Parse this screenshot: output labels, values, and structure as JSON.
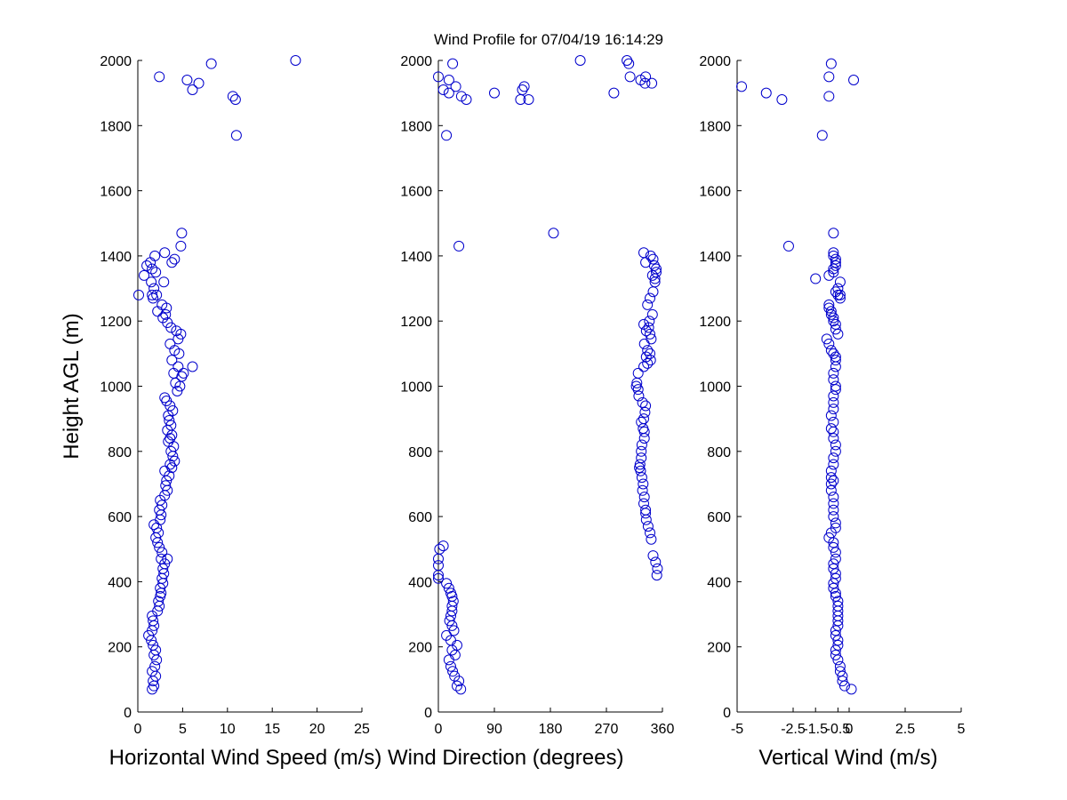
{
  "title": "Wind Profile for  07/04/19 16:14:29",
  "chart_data": [
    {
      "type": "scatter",
      "xlabel": "Horizontal Wind Speed (m/s)",
      "ylabel": "Height AGL (m)",
      "xlim": [
        0,
        25
      ],
      "ylim": [
        0,
        2000
      ],
      "xticks": [
        "0",
        "5",
        "10",
        "15",
        "20",
        "25"
      ],
      "yticks": [
        "0",
        "200",
        "400",
        "600",
        "800",
        "1000",
        "1200",
        "1400",
        "1600",
        "1800",
        "2000"
      ],
      "x": [
        1.6,
        1.8,
        1.7,
        2.0,
        1.6,
        1.9,
        2.1,
        1.8,
        2.0,
        1.7,
        1.5,
        1.2,
        1.6,
        1.8,
        1.7,
        1.6,
        2.2,
        2.4,
        2.3,
        2.5,
        2.6,
        2.5,
        2.8,
        2.7,
        2.9,
        2.8,
        3.0,
        2.6,
        3.3,
        2.7,
        2.4,
        2.2,
        2.0,
        2.3,
        2.1,
        1.8,
        2.5,
        2.6,
        2.4,
        2.7,
        2.5,
        3.0,
        3.3,
        3.1,
        3.2,
        3.5,
        3.0,
        3.8,
        3.6,
        4.1,
        3.9,
        3.7,
        4.0,
        3.4,
        3.6,
        3.8,
        3.3,
        3.7,
        3.5,
        3.4,
        3.9,
        3.6,
        3.2,
        3.0,
        4.4,
        4.7,
        4.2,
        4.9,
        4.0,
        5.1,
        4.5,
        6.1,
        3.8,
        4.6,
        4.1,
        3.6,
        4.5,
        4.8,
        4.3,
        3.7,
        3.3,
        2.8,
        3.1,
        2.2,
        3.2,
        2.7,
        1.7,
        2.1,
        1.6,
        1.8,
        0.1,
        2.9,
        1.5,
        0.7,
        2.0,
        1.6,
        1.0,
        1.4,
        3.8,
        4.1,
        1.9,
        3.0,
        4.8,
        4.9,
        11.0,
        10.9,
        10.6,
        6.1,
        5.5,
        6.8,
        2.4,
        8.2,
        17.6
      ],
      "y": [
        70,
        80,
        95,
        110,
        125,
        140,
        160,
        175,
        190,
        205,
        220,
        235,
        250,
        265,
        280,
        295,
        310,
        325,
        340,
        355,
        365,
        380,
        395,
        410,
        425,
        440,
        455,
        470,
        470,
        490,
        505,
        520,
        535,
        550,
        565,
        575,
        590,
        605,
        620,
        635,
        650,
        665,
        680,
        695,
        710,
        725,
        740,
        750,
        760,
        770,
        785,
        800,
        815,
        830,
        840,
        850,
        865,
        880,
        895,
        910,
        925,
        940,
        955,
        965,
        985,
        1000,
        1010,
        1030,
        1040,
        1040,
        1060,
        1060,
        1080,
        1100,
        1110,
        1130,
        1145,
        1160,
        1170,
        1180,
        1195,
        1210,
        1220,
        1230,
        1240,
        1250,
        1270,
        1280,
        1280,
        1300,
        1280,
        1320,
        1320,
        1340,
        1350,
        1360,
        1370,
        1380,
        1380,
        1390,
        1400,
        1410,
        1430,
        1470,
        1770,
        1880,
        1890,
        1910,
        1940,
        1930,
        1950,
        1990,
        2000
      ]
    },
    {
      "type": "scatter",
      "xlabel": "Wind Direction (degrees)",
      "ylabel": "",
      "xlim": [
        0,
        360
      ],
      "ylim": [
        0,
        2000
      ],
      "xticks": [
        "0",
        "90",
        "180",
        "270",
        "360"
      ],
      "yticks": [
        "0",
        "200",
        "400",
        "600",
        "800",
        "1000",
        "1200",
        "1400",
        "1600",
        "1800",
        "2000"
      ],
      "x": [
        36,
        30,
        33,
        26,
        23,
        20,
        17,
        27,
        22,
        30,
        20,
        13,
        25,
        22,
        18,
        20,
        22,
        22,
        24,
        22,
        20,
        17,
        13,
        0,
        0,
        0,
        2,
        8,
        0,
        351,
        352,
        349,
        345,
        342,
        340,
        337,
        334,
        333,
        333,
        330,
        331,
        328,
        329,
        327,
        325,
        323,
        324,
        326,
        326,
        327,
        331,
        331,
        329,
        326,
        330,
        332,
        333,
        328,
        322,
        321,
        318,
        319,
        321,
        330,
        336,
        341,
        334,
        340,
        336,
        331,
        342,
        340,
        334,
        338,
        330,
        339,
        344,
        336,
        340,
        345,
        348,
        348,
        344,
        350,
        350,
        347,
        333,
        345,
        341,
        330,
        33,
        185,
        13,
        45,
        37,
        17,
        135,
        28,
        332,
        17,
        0,
        23,
        303,
        306,
        308,
        228,
        138,
        145,
        90,
        343,
        132,
        8,
        325,
        282,
        333
      ],
      "y": [
        70,
        80,
        95,
        110,
        125,
        140,
        160,
        175,
        190,
        205,
        220,
        235,
        250,
        265,
        280,
        295,
        310,
        325,
        340,
        355,
        365,
        380,
        395,
        410,
        450,
        470,
        500,
        510,
        420,
        420,
        440,
        460,
        480,
        530,
        550,
        570,
        590,
        610,
        620,
        640,
        660,
        680,
        700,
        720,
        740,
        750,
        760,
        780,
        800,
        820,
        840,
        860,
        870,
        890,
        900,
        920,
        940,
        950,
        970,
        990,
        1000,
        1010,
        1040,
        1060,
        1070,
        1080,
        1090,
        1100,
        1110,
        1130,
        1145,
        1160,
        1170,
        1180,
        1190,
        1200,
        1220,
        1250,
        1270,
        1290,
        1320,
        1330,
        1340,
        1350,
        1360,
        1370,
        1380,
        1390,
        1400,
        1410,
        1430,
        1470,
        1770,
        1880,
        1890,
        1900,
        1910,
        1920,
        1930,
        1940,
        1950,
        1990,
        2000,
        1990,
        1950,
        2000,
        1920,
        1880,
        1900,
        1930,
        1880,
        1910,
        1940,
        1900,
        1950
      ]
    },
    {
      "type": "scatter",
      "xlabel": "Vertical Wind (m/s)",
      "ylabel": "",
      "xlim": [
        -5,
        5
      ],
      "ylim": [
        0,
        2000
      ],
      "xticks": [
        "-5",
        "-2.5",
        "-1.5",
        "-0.5",
        "0",
        "2.5",
        "5"
      ],
      "yticks": [
        "0",
        "200",
        "400",
        "600",
        "800",
        "1000",
        "1200",
        "1400",
        "1600",
        "1800",
        "2000"
      ],
      "x": [
        0.1,
        -0.2,
        -0.3,
        -0.3,
        -0.4,
        -0.4,
        -0.5,
        -0.6,
        -0.6,
        -0.5,
        -0.5,
        -0.6,
        -0.6,
        -0.5,
        -0.5,
        -0.5,
        -0.5,
        -0.5,
        -0.5,
        -0.6,
        -0.6,
        -0.7,
        -0.7,
        -0.6,
        -0.6,
        -0.7,
        -0.7,
        -0.6,
        -0.6,
        -0.7,
        -0.7,
        -0.9,
        -0.8,
        -0.6,
        -0.6,
        -0.7,
        -0.7,
        -0.7,
        -0.7,
        -0.8,
        -0.8,
        -0.7,
        -0.8,
        -0.8,
        -0.7,
        -0.7,
        -0.6,
        -0.6,
        -0.7,
        -0.7,
        -0.8,
        -0.7,
        -0.8,
        -0.7,
        -0.7,
        -0.7,
        -0.6,
        -0.6,
        -0.7,
        -0.7,
        -0.6,
        -0.6,
        -0.6,
        -0.7,
        -0.8,
        -0.9,
        -1.0,
        -0.5,
        -0.6,
        -0.6,
        -0.7,
        -0.7,
        -0.8,
        -0.8,
        -0.9,
        -0.9,
        -0.4,
        -0.5,
        -0.6,
        -0.5,
        -0.4,
        -0.4,
        -1.5,
        -0.9,
        -0.7,
        -0.7,
        -0.6,
        -0.6,
        -0.6,
        -0.7,
        -0.7,
        -2.7,
        -0.7,
        -1.2,
        -3.0,
        -0.9,
        -3.7,
        -4.8,
        0.2,
        -0.9,
        -0.8
      ],
      "y": [
        70,
        80,
        95,
        110,
        125,
        140,
        160,
        175,
        190,
        205,
        220,
        235,
        250,
        265,
        280,
        295,
        310,
        325,
        340,
        355,
        365,
        380,
        395,
        410,
        425,
        440,
        455,
        470,
        490,
        505,
        520,
        535,
        550,
        565,
        580,
        600,
        620,
        640,
        660,
        680,
        700,
        710,
        720,
        740,
        760,
        780,
        800,
        820,
        840,
        860,
        870,
        890,
        910,
        930,
        950,
        970,
        990,
        1000,
        1020,
        1040,
        1060,
        1080,
        1090,
        1100,
        1110,
        1130,
        1145,
        1160,
        1175,
        1190,
        1200,
        1210,
        1220,
        1230,
        1240,
        1250,
        1270,
        1280,
        1290,
        1300,
        1280,
        1320,
        1330,
        1340,
        1350,
        1360,
        1370,
        1380,
        1390,
        1400,
        1410,
        1430,
        1470,
        1770,
        1880,
        1890,
        1900,
        1920,
        1940,
        1950,
        1990
      ]
    }
  ]
}
